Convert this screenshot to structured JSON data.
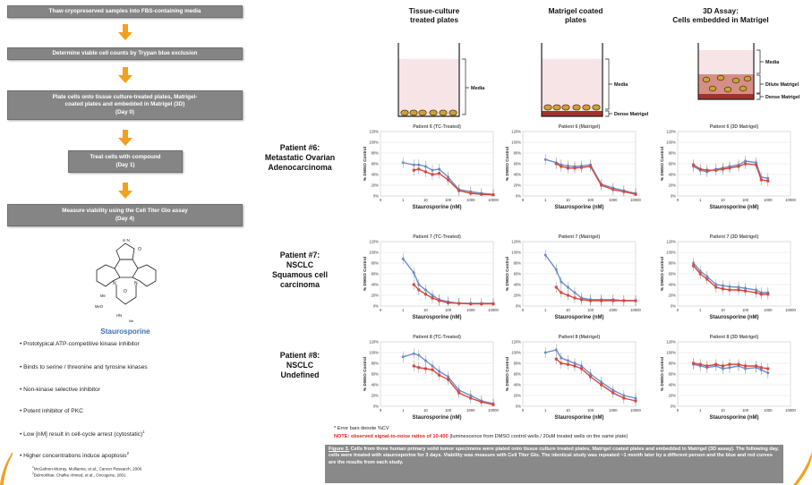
{
  "flowchart": {
    "steps": [
      {
        "lines": [
          "Thaw cryopreserved samples into FBS-containing media"
        ]
      },
      {
        "lines": [
          "Determine viable cell counts by Trypan blue exclusion"
        ]
      },
      {
        "lines": [
          "Plate cells onto tissue culture-treated plates, Matrigel-",
          "coated plates and embedded in Matrigel (3D)",
          "(Day 0)"
        ]
      },
      {
        "lines": [
          "Treat cells with compound",
          "(Day 1)"
        ]
      },
      {
        "lines": [
          "Measure viability using the Cell Titer Glo assay",
          "(Day 4)"
        ]
      }
    ],
    "arrow_color": "#f2a11f",
    "box_color": "#858585"
  },
  "compound": {
    "name": "Staurosporine",
    "structure_labels": {
      "nh": "H\nN",
      "oxygen": "O",
      "n_left": "N",
      "n_right": "N",
      "me": "Me",
      "meo": "MeO",
      "hn": "HN",
      "me2": "Me"
    },
    "bullets": [
      {
        "text": "Prototypical ATP-competitive kinase inhibitor",
        "sup": ""
      },
      {
        "text": "Binds to serine / threonine and tyrosine kinases",
        "sup": ""
      },
      {
        "text": "Non-kinase selective inhibitor",
        "sup": ""
      },
      {
        "text": "Potent inhibitor of PKC",
        "sup": ""
      },
      {
        "text": "Low [nM] result in cell-cycle arrest (cytostatic)",
        "sup": "1"
      },
      {
        "text": "Higher concentrations induce apoptosis",
        "sup": "2"
      }
    ],
    "references": [
      {
        "sup": "1",
        "text": "McGahren-Murray, Mollianne, et al., Cancer Research, 2006"
      },
      {
        "sup": "2",
        "text": "Belmokhtar, Chafke Ahmed, et al., Oncogene, 2001"
      }
    ]
  },
  "columns": [
    {
      "title_lines": [
        "Tissue-culture",
        "treated plates"
      ],
      "labels": [
        "Media"
      ]
    },
    {
      "title_lines": [
        "Matrigel coated",
        "plates"
      ],
      "labels": [
        "Media",
        "Dense Matrigel"
      ]
    },
    {
      "title_lines": [
        "3D Assay:",
        "Cells embedded in Matrigel"
      ],
      "labels": [
        "Media",
        "Dilute Matrigel",
        "Dense Matrigel"
      ]
    }
  ],
  "patients": [
    {
      "lines": [
        "Patient #6:",
        "Metastatic Ovarian",
        "Adenocarcinoma"
      ]
    },
    {
      "lines": [
        "Patient #7:",
        "NSCLC",
        "Squamous cell",
        "carcinoma"
      ]
    },
    {
      "lines": [
        "Patient #8:",
        "NSCLC",
        "Undefined"
      ]
    }
  ],
  "series_colors": {
    "run1": "#6a8fcc",
    "run2": "#d8453f"
  },
  "chart_data": [
    {
      "type": "line",
      "title": "Patient 6 (TC-Treated)",
      "xlabel": "Staurosporine (nM)",
      "ylabel": "% DMSO Control",
      "x_scale": "log",
      "xlim": [
        0.1,
        10000
      ],
      "ylim": [
        0,
        120
      ],
      "x_ticks": [
        "0",
        "1",
        "10",
        "100",
        "1000",
        "10000"
      ],
      "y_ticks": [
        "0%",
        "20%",
        "40%",
        "60%",
        "80%",
        "100%",
        "120%"
      ],
      "x": [
        1,
        3,
        5,
        10,
        20,
        40,
        100,
        300,
        1000,
        3000,
        10000
      ],
      "series": [
        {
          "values": [
            62,
            58,
            58,
            55,
            48,
            50,
            35,
            12,
            8,
            5,
            3
          ]
        },
        {
          "values": [
            null,
            48,
            50,
            45,
            40,
            42,
            30,
            10,
            5,
            3,
            2
          ]
        }
      ]
    },
    {
      "type": "line",
      "title": "Patient 6 (Matrigel)",
      "xlabel": "Staurosporine (nM)",
      "ylabel": "% DMSO Control",
      "x_scale": "log",
      "xlim": [
        0.1,
        10000
      ],
      "ylim": [
        0,
        120
      ],
      "x_ticks": [
        "0",
        "1",
        "10",
        "100",
        "1000",
        "10000"
      ],
      "y_ticks": [
        "0%",
        "20%",
        "40%",
        "60%",
        "80%",
        "100%",
        "120%"
      ],
      "x": [
        1,
        3,
        5,
        10,
        20,
        40,
        100,
        300,
        1000,
        3000,
        10000
      ],
      "series": [
        {
          "values": [
            68,
            62,
            58,
            56,
            55,
            56,
            58,
            22,
            15,
            10,
            5
          ]
        },
        {
          "values": [
            null,
            60,
            55,
            52,
            52,
            53,
            55,
            20,
            12,
            8,
            3
          ]
        }
      ]
    },
    {
      "type": "line",
      "title": "Patient 6 (3D Matrigel)",
      "xlabel": "Staurosporine (nM)",
      "ylabel": "% DMSO Control",
      "x_scale": "log",
      "xlim": [
        0.1,
        10000
      ],
      "ylim": [
        0,
        120
      ],
      "x_ticks": [
        "0",
        "1",
        "10",
        "100",
        "1000",
        "10000"
      ],
      "y_ticks": [
        "0%",
        "20%",
        "40%",
        "60%",
        "80%",
        "100%",
        "120%"
      ],
      "x": [
        0.5,
        1,
        2,
        5,
        10,
        20,
        50,
        100,
        300,
        500,
        1000
      ],
      "series": [
        {
          "values": [
            55,
            48,
            45,
            50,
            52,
            55,
            58,
            65,
            62,
            35,
            33
          ]
        },
        {
          "values": [
            58,
            50,
            48,
            48,
            50,
            52,
            55,
            60,
            58,
            30,
            28
          ]
        }
      ]
    },
    {
      "type": "line",
      "title": "Patient 7 (TC-Treated)",
      "xlabel": "Staurosporine (nM)",
      "ylabel": "% DMSO Control",
      "x_scale": "log",
      "xlim": [
        0.1,
        10000
      ],
      "ylim": [
        0,
        120
      ],
      "x_ticks": [
        "0",
        "1",
        "10",
        "100",
        "1000",
        "10000"
      ],
      "y_ticks": [
        "0%",
        "20%",
        "40%",
        "60%",
        "80%",
        "100%",
        "120%"
      ],
      "x": [
        1,
        3,
        5,
        10,
        20,
        40,
        100,
        300,
        1000,
        3000,
        10000
      ],
      "series": [
        {
          "values": [
            88,
            62,
            40,
            30,
            20,
            12,
            8,
            5,
            5,
            5,
            5
          ]
        },
        {
          "values": [
            null,
            40,
            30,
            22,
            15,
            10,
            6,
            5,
            4,
            4,
            4
          ]
        }
      ]
    },
    {
      "type": "line",
      "title": "Patient 7 (Matrigel)",
      "xlabel": "Staurosporine (nM)",
      "ylabel": "% DMSO Control",
      "x_scale": "log",
      "xlim": [
        0.1,
        10000
      ],
      "ylim": [
        0,
        120
      ],
      "x_ticks": [
        "0",
        "1",
        "10",
        "100",
        "1000",
        "10000"
      ],
      "y_ticks": [
        "0%",
        "20%",
        "40%",
        "60%",
        "80%",
        "100%",
        "120%"
      ],
      "x": [
        1,
        3,
        5,
        10,
        20,
        40,
        100,
        300,
        1000,
        3000,
        10000
      ],
      "series": [
        {
          "values": [
            95,
            68,
            45,
            35,
            25,
            15,
            12,
            12,
            12,
            10,
            10
          ]
        },
        {
          "values": [
            null,
            35,
            25,
            20,
            15,
            12,
            10,
            10,
            10,
            10,
            10
          ]
        }
      ]
    },
    {
      "type": "line",
      "title": "Patient 7 (3D Matrigel)",
      "xlabel": "Staurosporine (nM)",
      "ylabel": "% DMSO Control",
      "x_scale": "log",
      "xlim": [
        0.1,
        10000
      ],
      "ylim": [
        0,
        120
      ],
      "x_ticks": [
        "0",
        "1",
        "10",
        "100",
        "1000",
        "10000"
      ],
      "y_ticks": [
        "0%",
        "20%",
        "40%",
        "60%",
        "80%",
        "100%",
        "120%"
      ],
      "x": [
        0.5,
        1,
        2,
        5,
        10,
        20,
        50,
        100,
        300,
        500,
        1000
      ],
      "series": [
        {
          "values": [
            80,
            65,
            55,
            40,
            38,
            36,
            35,
            33,
            30,
            25,
            25
          ]
        },
        {
          "values": [
            75,
            60,
            50,
            35,
            32,
            30,
            30,
            28,
            25,
            22,
            22
          ]
        }
      ]
    },
    {
      "type": "line",
      "title": "Patient 8 (TC-Treated)",
      "xlabel": "Staurosporine (nM)",
      "ylabel": "% DMSO Control",
      "x_scale": "log",
      "xlim": [
        0.1,
        10000
      ],
      "ylim": [
        0,
        120
      ],
      "x_ticks": [
        "0",
        "1",
        "10",
        "100",
        "1000",
        "10000"
      ],
      "y_ticks": [
        "0%",
        "20%",
        "40%",
        "60%",
        "80%",
        "100%",
        "120%"
      ],
      "x": [
        1,
        3,
        5,
        10,
        20,
        40,
        100,
        300,
        1000,
        3000,
        10000
      ],
      "series": [
        {
          "values": [
            92,
            98,
            95,
            85,
            75,
            65,
            55,
            30,
            20,
            10,
            5
          ]
        },
        {
          "values": [
            null,
            75,
            72,
            70,
            68,
            58,
            50,
            25,
            15,
            8,
            3
          ]
        }
      ]
    },
    {
      "type": "line",
      "title": "Patient 8 (Matrigel)",
      "xlabel": "Staurosporine (nM)",
      "ylabel": "% DMSO Control",
      "x_scale": "log",
      "xlim": [
        0.1,
        10000
      ],
      "ylim": [
        0,
        120
      ],
      "x_ticks": [
        "0",
        "1",
        "10",
        "100",
        "1000",
        "10000"
      ],
      "y_ticks": [
        "0%",
        "20%",
        "40%",
        "60%",
        "80%",
        "100%",
        "120%"
      ],
      "x": [
        1,
        3,
        5,
        10,
        20,
        40,
        100,
        300,
        1000,
        3000,
        10000
      ],
      "series": [
        {
          "values": [
            100,
            105,
            90,
            85,
            80,
            75,
            60,
            45,
            30,
            20,
            15
          ]
        },
        {
          "values": [
            null,
            88,
            80,
            78,
            75,
            70,
            55,
            40,
            25,
            15,
            10
          ]
        }
      ]
    },
    {
      "type": "line",
      "title": "Patient 8 (3D Matrigel)",
      "xlabel": "Staurosporine (nM)",
      "ylabel": "% DMSO Control",
      "x_scale": "log",
      "xlim": [
        0.1,
        10000
      ],
      "ylim": [
        0,
        120
      ],
      "x_ticks": [
        "0",
        "1",
        "10",
        "100",
        "1000",
        "10000"
      ],
      "y_ticks": [
        "0%",
        "20%",
        "40%",
        "60%",
        "80%",
        "100%",
        "120%"
      ],
      "x": [
        0.5,
        1,
        2,
        5,
        10,
        20,
        50,
        100,
        300,
        500,
        1000
      ],
      "series": [
        {
          "values": [
            78,
            75,
            72,
            75,
            70,
            72,
            75,
            70,
            72,
            68,
            62
          ]
        },
        {
          "values": [
            80,
            78,
            75,
            78,
            75,
            78,
            78,
            75,
            75,
            72,
            70
          ]
        }
      ]
    }
  ],
  "notes": {
    "error_bars": "* Error bars denote %CV",
    "snr_label": "NOTE: observed signal-to-noise ratios of 10-400",
    "snr_detail": " (luminescence from DMSO control wells / 20uM treated wells on the same plate)"
  },
  "caption": {
    "figure_label": "Figure 3.",
    "text": " Cells from three human primary solid tumor specimens were plated onto tissue culture treated plates, Matrigel coated plates and embedded in Matrigel (3D assay). The following day, cells were treated with staurosporine for 3 days. Viability was measure with Cell Titer Glo. The identical study was repeated ~1 month later by a different person and the blue and red curves are the results from each study."
  }
}
